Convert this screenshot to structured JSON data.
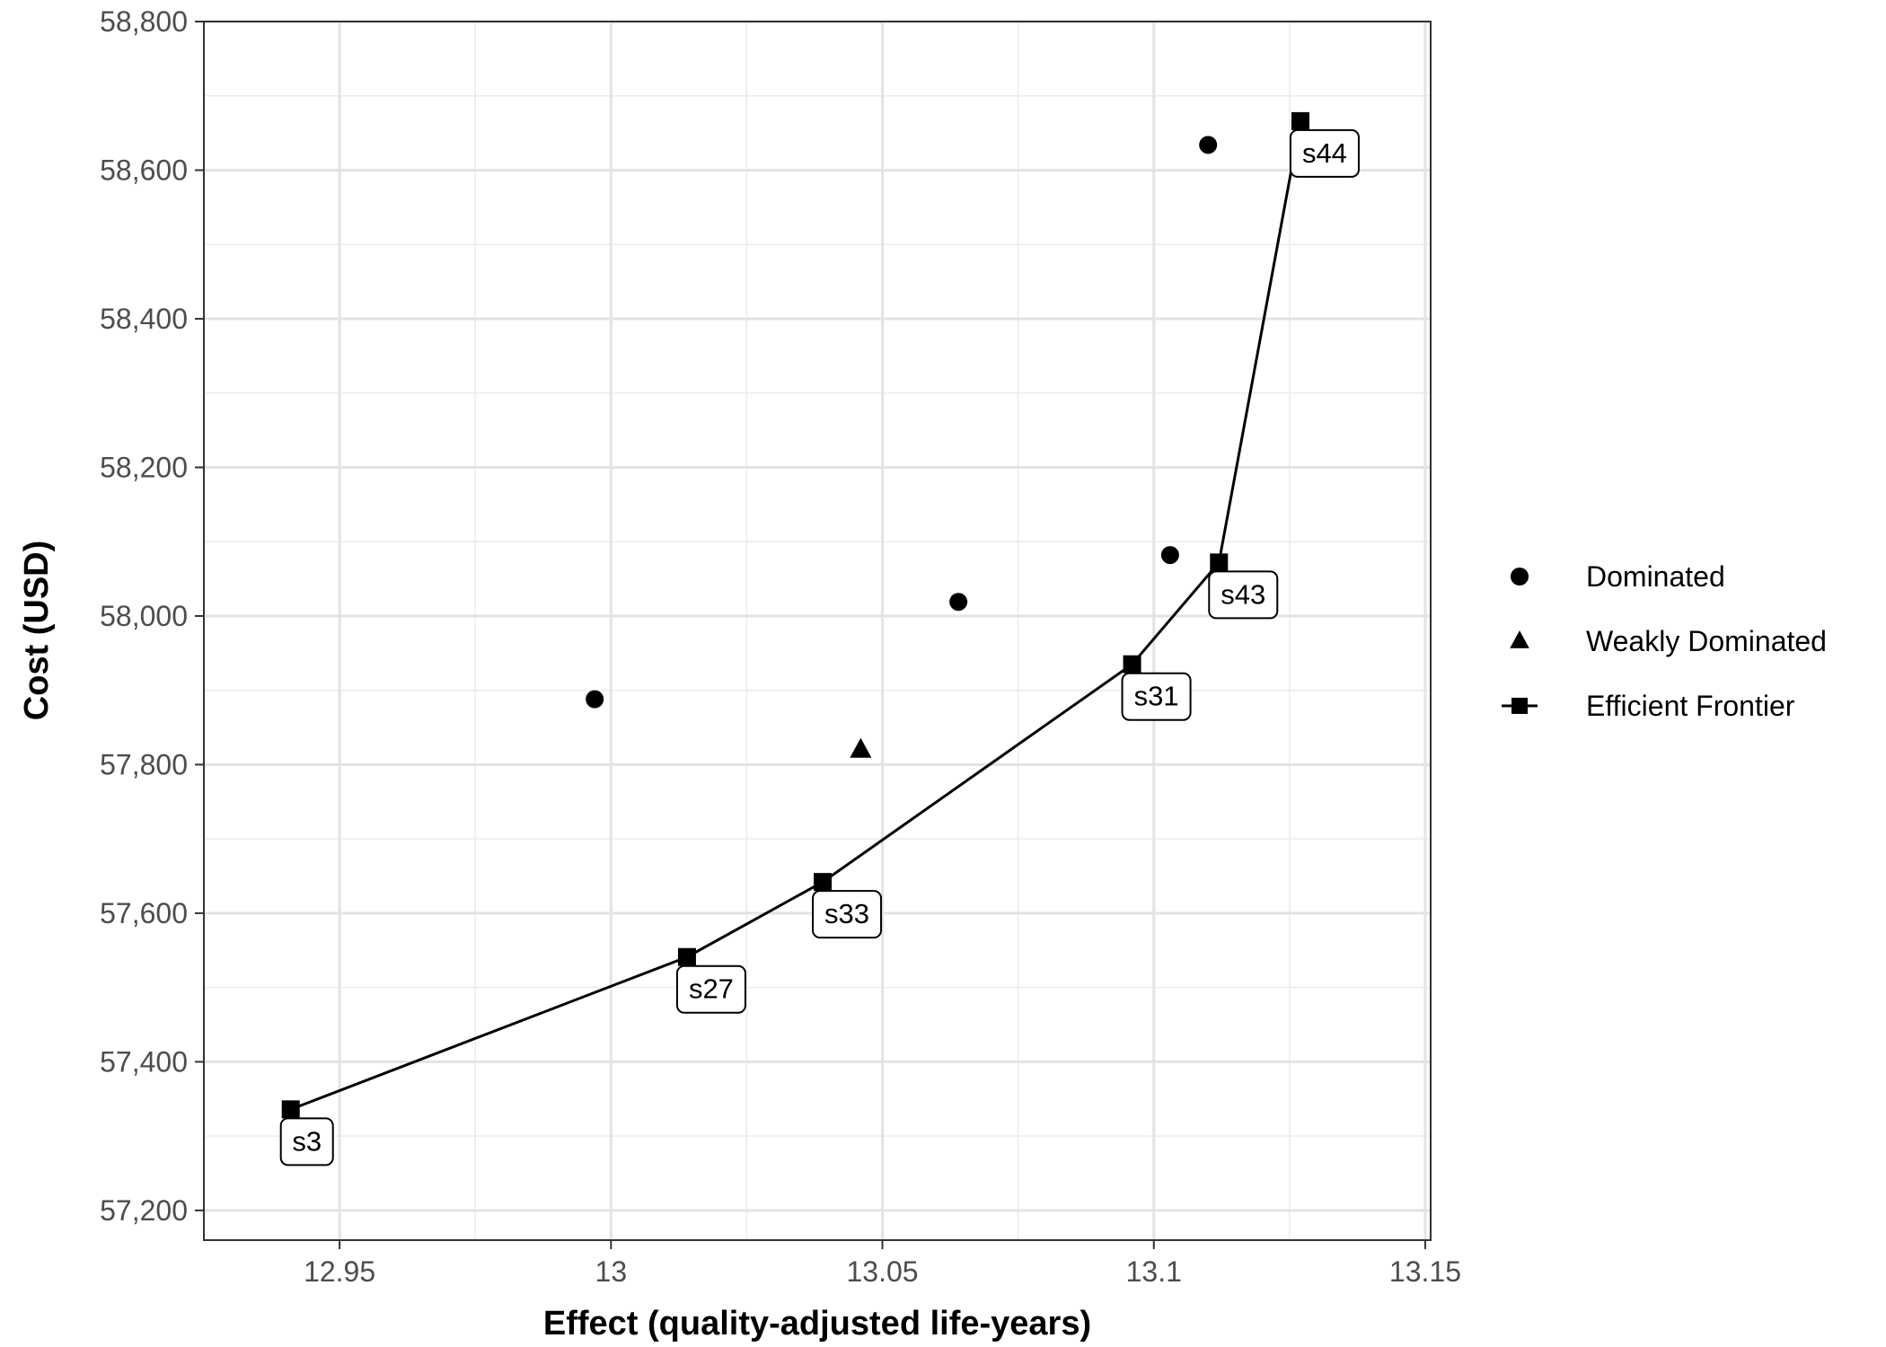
{
  "chart_data": {
    "type": "scatter",
    "xlabel": "Effect (quality-adjusted life-years)",
    "ylabel": "Cost (USD)",
    "xlim": [
      12.925,
      13.151
    ],
    "ylim": [
      57160,
      58800
    ],
    "x_ticks": [
      {
        "value": 12.95,
        "label": "12.95"
      },
      {
        "value": 13.0,
        "label": "13"
      },
      {
        "value": 13.05,
        "label": "13.05"
      },
      {
        "value": 13.1,
        "label": "13.1"
      },
      {
        "value": 13.15,
        "label": "13.15"
      }
    ],
    "y_ticks": [
      {
        "value": 57200,
        "label": "57,200"
      },
      {
        "value": 57400,
        "label": "57,400"
      },
      {
        "value": 57600,
        "label": "57,600"
      },
      {
        "value": 57800,
        "label": "57,800"
      },
      {
        "value": 58000,
        "label": "58,000"
      },
      {
        "value": 58200,
        "label": "58,200"
      },
      {
        "value": 58400,
        "label": "58,400"
      },
      {
        "value": 58600,
        "label": "58,600"
      },
      {
        "value": 58800,
        "label": "58,800"
      }
    ],
    "grid": true,
    "legend_position": "right",
    "series": [
      {
        "name": "Dominated",
        "marker": "circle",
        "points": [
          {
            "x": 12.997,
            "y": 57888
          },
          {
            "x": 13.064,
            "y": 58019
          },
          {
            "x": 13.103,
            "y": 58082
          },
          {
            "x": 13.11,
            "y": 58634
          }
        ]
      },
      {
        "name": "Weakly Dominated",
        "marker": "triangle",
        "points": [
          {
            "x": 13.046,
            "y": 57820
          }
        ]
      },
      {
        "name": "Efficient Frontier",
        "marker": "square",
        "line": true,
        "points": [
          {
            "x": 12.941,
            "y": 57336,
            "label": "s3"
          },
          {
            "x": 13.014,
            "y": 57541,
            "label": "s27"
          },
          {
            "x": 13.039,
            "y": 57642,
            "label": "s33"
          },
          {
            "x": 13.096,
            "y": 57935,
            "label": "s31"
          },
          {
            "x": 13.112,
            "y": 58072,
            "label": "s43"
          },
          {
            "x": 13.127,
            "y": 58666,
            "label": "s44"
          }
        ]
      }
    ]
  }
}
